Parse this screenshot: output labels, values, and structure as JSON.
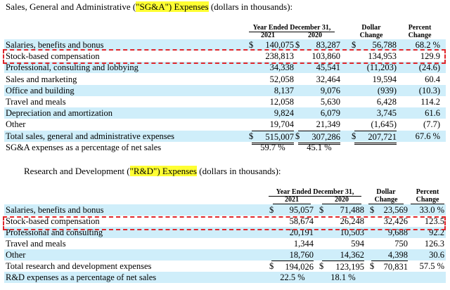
{
  "sga": {
    "title_pre": "Sales, General and Administrative (",
    "title_hl": "\"SG&A\") Expenses",
    "title_post": " (dollars in thousands):",
    "header": {
      "year_ended": "Year Ended December 31,",
      "y2021": "2021",
      "y2020": "2020",
      "dollar": "Dollar",
      "dollar2": "Change",
      "percent": "Percent",
      "percent2": "Change"
    },
    "rows": [
      {
        "label": "Salaries, benefits and bonus",
        "d2021": "$",
        "v2021": "140,075",
        "d2020": "$",
        "v2020": "83,287",
        "dchg": "$",
        "vchg": "56,788",
        "pct": "68.2 %"
      },
      {
        "label": "Stock-based compensation",
        "v2021": "238,813",
        "v2020": "103,860",
        "vchg": "134,953",
        "pct": "129.9"
      },
      {
        "label": "Professional, consulting and lobbying",
        "v2021": "34,338",
        "v2020": "45,541",
        "vchg": "(11,203)",
        "pct": "(24.6)"
      },
      {
        "label": "Sales and marketing",
        "v2021": "52,058",
        "v2020": "32,464",
        "vchg": "19,594",
        "pct": "60.4"
      },
      {
        "label": "Office and building",
        "v2021": "8,137",
        "v2020": "9,076",
        "vchg": "(939)",
        "pct": "(10.3)"
      },
      {
        "label": "Travel and meals",
        "v2021": "12,058",
        "v2020": "5,630",
        "vchg": "6,428",
        "pct": "114.2"
      },
      {
        "label": "Depreciation and amortization",
        "v2021": "9,824",
        "v2020": "6,079",
        "vchg": "3,745",
        "pct": "61.6"
      },
      {
        "label": "Other",
        "v2021": "19,704",
        "v2020": "21,349",
        "vchg": "(1,645)",
        "pct": "(7.7)"
      },
      {
        "label": "Total sales, general and administrative expenses",
        "d2021": "$",
        "v2021": "515,007",
        "d2020": "$",
        "v2020": "307,286",
        "dchg": "$",
        "vchg": "207,721",
        "pct": "67.6 %"
      },
      {
        "label": "SG&A expenses as a percentage of net sales",
        "v2021": "59.7 %",
        "v2020": "45.1 %",
        "vchg": "",
        "pct": ""
      }
    ]
  },
  "rnd": {
    "title_pre": "Research and Development (",
    "title_hl": "\"R&D\") Expenses",
    "title_post": " (dollars in thousands):",
    "header": {
      "year_ended": "Year Ended December 31,",
      "y2021": "2021",
      "y2020": "2020",
      "dollar": "Dollar",
      "dollar2": "Change",
      "percent": "Percent",
      "percent2": "Change"
    },
    "rows": [
      {
        "label": "Salaries, benefits and bonus",
        "d2021": "$",
        "v2021": "95,057",
        "d2020": "$",
        "v2020": "71,488",
        "dchg": "$",
        "vchg": "23,569",
        "pct": "33.0 %"
      },
      {
        "label": "Stock-based compensation",
        "v2021": "58,674",
        "v2020": "26,248",
        "vchg": "32,426",
        "pct": "123.5"
      },
      {
        "label": "Professional and consulting",
        "v2021": "20,191",
        "v2020": "10,503",
        "vchg": "9,688",
        "pct": "92.2"
      },
      {
        "label": "Travel and meals",
        "v2021": "1,344",
        "v2020": "594",
        "vchg": "750",
        "pct": "126.3"
      },
      {
        "label": "Other",
        "v2021": "18,760",
        "v2020": "14,362",
        "vchg": "4,398",
        "pct": "30.6"
      },
      {
        "label": "Total research and development expenses",
        "d2021": "$",
        "v2021": "194,026",
        "d2020": "$",
        "v2020": "123,195",
        "dchg": "$",
        "vchg": "70,831",
        "pct": "57.5 %"
      },
      {
        "label": "R&D expenses as a percentage of net sales",
        "v2021": "22.5 %",
        "v2020": "18.1 %",
        "vchg": "",
        "pct": ""
      }
    ]
  },
  "colors": {
    "highlight": "#ffff33",
    "row_shade": "#cfeefa",
    "dashed_box": "#e0262b"
  }
}
